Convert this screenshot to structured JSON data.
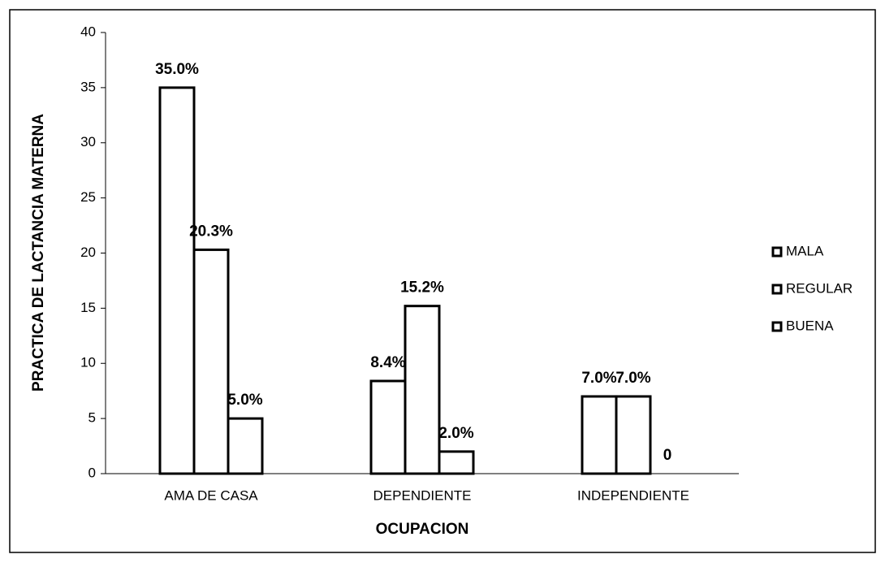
{
  "chart_data": {
    "type": "bar",
    "categories": [
      "AMA DE CASA",
      "DEPENDIENTE",
      "INDEPENDIENTE"
    ],
    "series": [
      {
        "name": "MALA",
        "color": "#ffffff",
        "values": [
          35.0,
          8.4,
          7.0
        ],
        "value_labels": [
          "35.0%",
          "8.4%",
          "7.0%"
        ]
      },
      {
        "name": "REGULAR",
        "color": "#ffffff",
        "values": [
          20.3,
          15.2,
          7.0
        ],
        "value_labels": [
          "20.3%",
          "15.2%",
          "7.0%"
        ]
      },
      {
        "name": "BUENA",
        "color": "#ffffff",
        "values": [
          5.0,
          2.0,
          0
        ],
        "value_labels": [
          "5.0%",
          "2.0%",
          "0"
        ]
      }
    ],
    "xlabel": "OCUPACION",
    "ylabel": "PRACTICA DE LACTANCIA MATERNA",
    "ylim": [
      0,
      40
    ],
    "yticks": [
      0,
      5,
      10,
      15,
      20,
      25,
      30,
      35,
      40
    ],
    "grid": false,
    "legend": "right"
  }
}
